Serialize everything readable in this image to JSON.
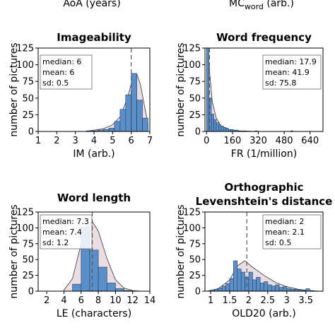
{
  "headers": [
    {
      "text": "AoA (years)"
    },
    {
      "text": "MC",
      "sub": "word",
      "tail": " (arb.)"
    }
  ],
  "chart_data": [
    {
      "type": "bar",
      "title": [
        "Imageability"
      ],
      "xlabel": "IM (arb.)",
      "ylabel": "number of pictures",
      "xlim": [
        1,
        7
      ],
      "ylim": [
        0,
        125
      ],
      "xticks": [
        "1",
        "2",
        "3",
        "4",
        "5",
        "6",
        "7"
      ],
      "xtick_values": [
        1,
        2,
        3,
        4,
        5,
        6,
        7
      ],
      "yticks": [
        "0",
        "25",
        "50",
        "75",
        "100",
        "125"
      ],
      "ytick_values": [
        0,
        25,
        50,
        75,
        100,
        125
      ],
      "stats": {
        "box": "top-left",
        "lines": [
          "median: 6",
          "mean: 6",
          "sd: 0.5"
        ]
      },
      "median_line": 6,
      "bins": [
        {
          "x0": 3.6,
          "x1": 3.9,
          "value": 1
        },
        {
          "x0": 3.9,
          "x1": 4.2,
          "value": 1
        },
        {
          "x0": 4.2,
          "x1": 4.5,
          "value": 2
        },
        {
          "x0": 4.5,
          "x1": 4.8,
          "value": 3
        },
        {
          "x0": 4.8,
          "x1": 5.1,
          "value": 5
        },
        {
          "x0": 5.1,
          "x1": 5.4,
          "value": 15
        },
        {
          "x0": 5.4,
          "x1": 5.7,
          "value": 33
        },
        {
          "x0": 5.7,
          "x1": 6.0,
          "value": 55
        },
        {
          "x0": 6.0,
          "x1": 6.3,
          "value": 87
        },
        {
          "x0": 6.3,
          "x1": 6.6,
          "value": 47
        },
        {
          "x0": 6.6,
          "x1": 6.9,
          "value": 20
        }
      ],
      "density": [
        [
          3.5,
          0
        ],
        [
          4.0,
          2
        ],
        [
          4.5,
          4
        ],
        [
          5.0,
          10
        ],
        [
          5.4,
          22
        ],
        [
          5.8,
          50
        ],
        [
          6.1,
          82
        ],
        [
          6.3,
          86
        ],
        [
          6.5,
          70
        ],
        [
          6.7,
          40
        ],
        [
          6.9,
          12
        ]
      ]
    },
    {
      "type": "bar",
      "title": [
        "Word frequency"
      ],
      "xlabel": "FR (1/million)",
      "ylabel": "number of pictures",
      "xlim": [
        -10,
        720
      ],
      "ylim": [
        0,
        125
      ],
      "xticks": [
        "0",
        "160",
        "320",
        "480",
        "640"
      ],
      "xtick_values": [
        0,
        160,
        320,
        480,
        640
      ],
      "yticks": [
        "0",
        "25",
        "50",
        "75",
        "100",
        "125"
      ],
      "ytick_values": [
        0,
        25,
        50,
        75,
        100,
        125
      ],
      "stats": {
        "box": "top-right",
        "lines": [
          "median: 17.9",
          "mean: 41.9",
          "sd: 75.8"
        ]
      },
      "median_line": 17.9,
      "bins": [
        {
          "x0": 0,
          "x1": 15,
          "value": 125
        },
        {
          "x0": 15,
          "x1": 30,
          "value": 50
        },
        {
          "x0": 30,
          "x1": 45,
          "value": 26
        },
        {
          "x0": 45,
          "x1": 60,
          "value": 18
        },
        {
          "x0": 60,
          "x1": 75,
          "value": 13
        },
        {
          "x0": 75,
          "x1": 90,
          "value": 10
        },
        {
          "x0": 90,
          "x1": 105,
          "value": 8
        },
        {
          "x0": 105,
          "x1": 120,
          "value": 6
        },
        {
          "x0": 120,
          "x1": 135,
          "value": 5
        },
        {
          "x0": 135,
          "x1": 150,
          "value": 3
        },
        {
          "x0": 150,
          "x1": 165,
          "value": 3
        },
        {
          "x0": 165,
          "x1": 180,
          "value": 2
        },
        {
          "x0": 180,
          "x1": 195,
          "value": 2
        },
        {
          "x0": 195,
          "x1": 210,
          "value": 1
        },
        {
          "x0": 230,
          "x1": 245,
          "value": 1
        },
        {
          "x0": 300,
          "x1": 315,
          "value": 1
        },
        {
          "x0": 520,
          "x1": 535,
          "value": 1
        }
      ],
      "density": [
        [
          0,
          125
        ],
        [
          10,
          120
        ],
        [
          20,
          85
        ],
        [
          35,
          45
        ],
        [
          60,
          20
        ],
        [
          90,
          8
        ],
        [
          130,
          3
        ],
        [
          200,
          1
        ],
        [
          320,
          0
        ],
        [
          720,
          0
        ]
      ]
    },
    {
      "type": "bar",
      "title": [
        "Word length"
      ],
      "xlabel": "LE (characters)",
      "ylabel": "number of pictures",
      "xlim": [
        1,
        14
      ],
      "ylim": [
        0,
        125
      ],
      "xticks": [
        "2",
        "4",
        "6",
        "8",
        "10",
        "12",
        "14"
      ],
      "xtick_values": [
        2,
        4,
        6,
        8,
        10,
        12,
        14
      ],
      "yticks": [
        "0",
        "25",
        "50",
        "75",
        "100",
        "125"
      ],
      "ytick_values": [
        0,
        25,
        50,
        75,
        100,
        125
      ],
      "stats": {
        "box": "top-left",
        "lines": [
          "median: 7.3",
          "mean: 7.4",
          "sd: 1.2"
        ]
      },
      "median_line": 7.3,
      "bins": [
        {
          "x0": 5,
          "x1": 6,
          "value": 11
        },
        {
          "x0": 6,
          "x1": 7,
          "value": 101
        },
        {
          "x0": 7,
          "x1": 8,
          "value": 65
        },
        {
          "x0": 8,
          "x1": 9,
          "value": 38
        },
        {
          "x0": 9,
          "x1": 10,
          "value": 13
        },
        {
          "x0": 10,
          "x1": 11,
          "value": 4
        },
        {
          "x0": 11,
          "x1": 12,
          "value": 1
        }
      ],
      "density": [
        [
          4,
          2
        ],
        [
          5,
          20
        ],
        [
          6,
          75
        ],
        [
          6.8,
          105
        ],
        [
          7.3,
          110
        ],
        [
          8,
          95
        ],
        [
          9,
          52
        ],
        [
          10,
          18
        ],
        [
          11,
          5
        ],
        [
          12,
          1
        ],
        [
          13,
          0
        ]
      ]
    },
    {
      "type": "bar",
      "title": [
        "Orthographic",
        "Levenshtein's distance"
      ],
      "xlabel": "OLD20 (arb.)",
      "ylabel": "number of pictures",
      "xlim": [
        0.85,
        3.95
      ],
      "ylim": [
        0,
        125
      ],
      "xticks": [
        "1",
        "1.5",
        "2",
        "2.5",
        "3",
        "3.5"
      ],
      "xtick_values": [
        1,
        1.5,
        2,
        2.5,
        3,
        3.5
      ],
      "yticks": [
        "0",
        "25",
        "50",
        "75",
        "100",
        "125"
      ],
      "ytick_values": [
        0,
        25,
        50,
        75,
        100,
        125
      ],
      "stats": {
        "box": "top-right",
        "lines": [
          "median: 2",
          "mean: 2.1",
          "sd: 0.5"
        ]
      },
      "median_line": 1.95,
      "bins": [
        {
          "x0": 1.0,
          "x1": 1.1,
          "value": 2
        },
        {
          "x0": 1.1,
          "x1": 1.2,
          "value": 3
        },
        {
          "x0": 1.2,
          "x1": 1.3,
          "value": 5
        },
        {
          "x0": 1.3,
          "x1": 1.4,
          "value": 8
        },
        {
          "x0": 1.4,
          "x1": 1.5,
          "value": 12
        },
        {
          "x0": 1.5,
          "x1": 1.6,
          "value": 20
        },
        {
          "x0": 1.6,
          "x1": 1.7,
          "value": 48
        },
        {
          "x0": 1.7,
          "x1": 1.8,
          "value": 35
        },
        {
          "x0": 1.8,
          "x1": 1.9,
          "value": 30
        },
        {
          "x0": 1.9,
          "x1": 2.0,
          "value": 22
        },
        {
          "x0": 2.0,
          "x1": 2.1,
          "value": 30
        },
        {
          "x0": 2.1,
          "x1": 2.2,
          "value": 18
        },
        {
          "x0": 2.2,
          "x1": 2.3,
          "value": 22
        },
        {
          "x0": 2.3,
          "x1": 2.4,
          "value": 13
        },
        {
          "x0": 2.4,
          "x1": 2.5,
          "value": 15
        },
        {
          "x0": 2.5,
          "x1": 2.6,
          "value": 10
        },
        {
          "x0": 2.6,
          "x1": 2.7,
          "value": 8
        },
        {
          "x0": 2.7,
          "x1": 2.8,
          "value": 10
        },
        {
          "x0": 2.8,
          "x1": 2.9,
          "value": 6
        },
        {
          "x0": 2.9,
          "x1": 3.0,
          "value": 7
        },
        {
          "x0": 3.0,
          "x1": 3.1,
          "value": 4
        },
        {
          "x0": 3.1,
          "x1": 3.2,
          "value": 3
        },
        {
          "x0": 3.2,
          "x1": 3.3,
          "value": 3
        },
        {
          "x0": 3.3,
          "x1": 3.4,
          "value": 2
        },
        {
          "x0": 3.4,
          "x1": 3.5,
          "value": 1
        },
        {
          "x0": 3.5,
          "x1": 3.6,
          "value": 4
        },
        {
          "x0": 3.6,
          "x1": 3.7,
          "value": 1
        }
      ],
      "density": [
        [
          0.9,
          0
        ],
        [
          1.2,
          4
        ],
        [
          1.5,
          18
        ],
        [
          1.7,
          40
        ],
        [
          1.9,
          48
        ],
        [
          2.1,
          38
        ],
        [
          2.4,
          25
        ],
        [
          2.7,
          14
        ],
        [
          3.0,
          7
        ],
        [
          3.3,
          3
        ],
        [
          3.6,
          1
        ],
        [
          3.9,
          0
        ]
      ]
    }
  ],
  "colors": {
    "bar_fill": "#5b8fc9",
    "bar_stroke": "#1f3b5a",
    "density_fill": "#eadde4",
    "density_stroke": "#333333",
    "median_line": "#555555"
  }
}
